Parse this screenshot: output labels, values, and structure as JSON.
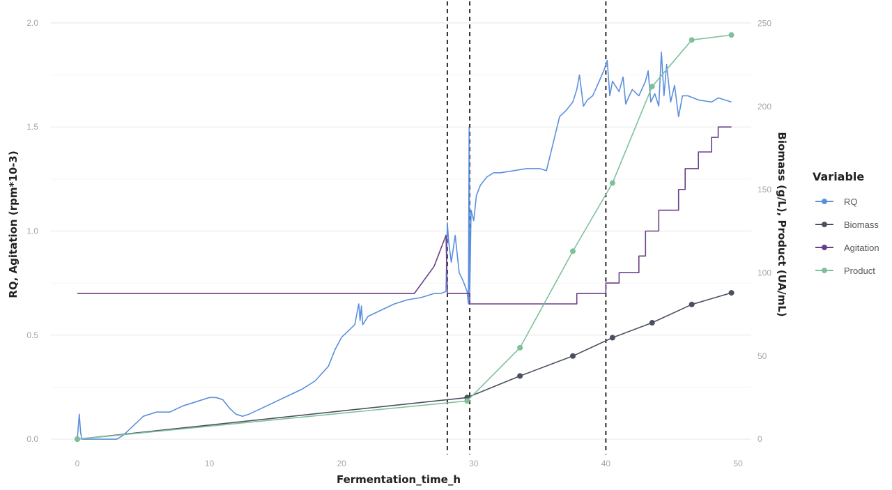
{
  "chart_data": {
    "type": "line",
    "xlabel": "Fermentation_time_h",
    "ylabel": "RQ, Agitation (rpm*10-3)",
    "ylabel_right": "Biomass (g/L), Product (UA/mL)",
    "xlim": [
      -2,
      51
    ],
    "ylim": [
      -0.04,
      2.07
    ],
    "ylim_right": [
      -5,
      259
    ],
    "x_ticks": [
      0,
      10,
      20,
      30,
      40,
      50
    ],
    "y_ticks": [
      0.0,
      0.5,
      1.0,
      1.5,
      2.0
    ],
    "y_ticks_right": [
      0,
      50,
      100,
      150,
      200,
      250
    ],
    "x_tick_labels": [
      "0",
      "10",
      "20",
      "30",
      "40",
      "50"
    ],
    "y_tick_labels": [
      "0.0",
      "0.5",
      "1.0",
      "1.5",
      "2.0"
    ],
    "y_tick_labels_right": [
      "0",
      "50",
      "100",
      "150",
      "200",
      "250"
    ],
    "grid": true,
    "vlines": [
      28.0,
      29.7,
      40.0
    ],
    "legend": {
      "title": "Variable",
      "position": "right"
    },
    "series": [
      {
        "name": "RQ",
        "axis": "left",
        "color": "#5b8fdc",
        "markers": false,
        "x": [
          0,
          0.15,
          0.25,
          0.35,
          3,
          3.5,
          4,
          4.5,
          5,
          6,
          7,
          8,
          9,
          10,
          10.5,
          11,
          11.5,
          12,
          12.5,
          13,
          14,
          15,
          16,
          17,
          18,
          19,
          19.5,
          20,
          20.5,
          21,
          21.3,
          21.4,
          21.5,
          21.6,
          21.8,
          22,
          23,
          24,
          25,
          26,
          27,
          27.5,
          27.9,
          28.0,
          28.1,
          28.3,
          28.6,
          28.9,
          29.2,
          29.5,
          29.6,
          29.65,
          29.7,
          29.8,
          30,
          30.2,
          30.5,
          31,
          31.5,
          32,
          33,
          34,
          35,
          35.5,
          36,
          36.5,
          37,
          37.5,
          37.8,
          38.0,
          38.3,
          38.6,
          39,
          39.5,
          39.9,
          40.1,
          40.3,
          40.5,
          41,
          41.3,
          41.5,
          41.7,
          42,
          42.5,
          43,
          43.2,
          43.4,
          43.7,
          44,
          44.2,
          44.4,
          44.6,
          44.9,
          45.2,
          45.5,
          45.8,
          46.2,
          47,
          48,
          48.5,
          49,
          49.5
        ],
        "y": [
          0.0,
          0.12,
          0.03,
          0.0,
          0.0,
          0.02,
          0.05,
          0.08,
          0.11,
          0.13,
          0.13,
          0.16,
          0.18,
          0.2,
          0.2,
          0.19,
          0.15,
          0.12,
          0.11,
          0.12,
          0.15,
          0.18,
          0.21,
          0.24,
          0.28,
          0.35,
          0.43,
          0.49,
          0.52,
          0.55,
          0.65,
          0.57,
          0.64,
          0.55,
          0.57,
          0.59,
          0.62,
          0.65,
          0.67,
          0.68,
          0.7,
          0.7,
          0.71,
          1.04,
          0.95,
          0.85,
          0.98,
          0.8,
          0.76,
          0.71,
          0.65,
          1.5,
          0.7,
          1.1,
          1.05,
          1.17,
          1.22,
          1.26,
          1.28,
          1.28,
          1.29,
          1.3,
          1.3,
          1.29,
          1.42,
          1.55,
          1.58,
          1.62,
          1.68,
          1.75,
          1.6,
          1.63,
          1.65,
          1.72,
          1.78,
          1.82,
          1.65,
          1.72,
          1.67,
          1.74,
          1.61,
          1.64,
          1.68,
          1.65,
          1.72,
          1.77,
          1.62,
          1.66,
          1.6,
          1.86,
          1.65,
          1.8,
          1.62,
          1.7,
          1.55,
          1.65,
          1.65,
          1.63,
          1.62,
          1.64,
          1.63,
          1.62
        ]
      },
      {
        "name": "Biomass",
        "axis": "right",
        "color": "#4a5060",
        "markers": true,
        "x": [
          0,
          29.5,
          33.5,
          37.5,
          40.5,
          43.5,
          46.5,
          49.5
        ],
        "y": [
          0,
          25,
          38,
          50,
          61,
          70,
          81,
          88
        ]
      },
      {
        "name": "Agitation",
        "axis": "left",
        "color": "#6b3f87",
        "markers": false,
        "x": [
          0,
          25.5,
          27.0,
          27.9,
          28.0,
          29.7,
          29.7,
          37.8,
          37.8,
          40.0,
          40.0,
          41.0,
          41.0,
          42.5,
          42.5,
          43.0,
          43.0,
          44.0,
          44.0,
          45.5,
          45.5,
          46.0,
          46.0,
          47.0,
          47.0,
          48.0,
          48.0,
          48.5,
          48.5,
          49.5
        ],
        "y": [
          0.7,
          0.7,
          0.83,
          0.98,
          0.7,
          0.7,
          0.65,
          0.65,
          0.7,
          0.7,
          0.75,
          0.75,
          0.8,
          0.8,
          0.88,
          0.88,
          1.0,
          1.0,
          1.1,
          1.1,
          1.2,
          1.2,
          1.3,
          1.3,
          1.38,
          1.38,
          1.45,
          1.45,
          1.5,
          1.5
        ]
      },
      {
        "name": "Product",
        "axis": "right",
        "color": "#7fc09a",
        "markers": true,
        "x": [
          0,
          29.5,
          33.5,
          37.5,
          40.5,
          43.5,
          46.5,
          49.5
        ],
        "y": [
          0,
          23,
          55,
          113,
          154,
          212,
          240,
          243
        ]
      }
    ]
  }
}
